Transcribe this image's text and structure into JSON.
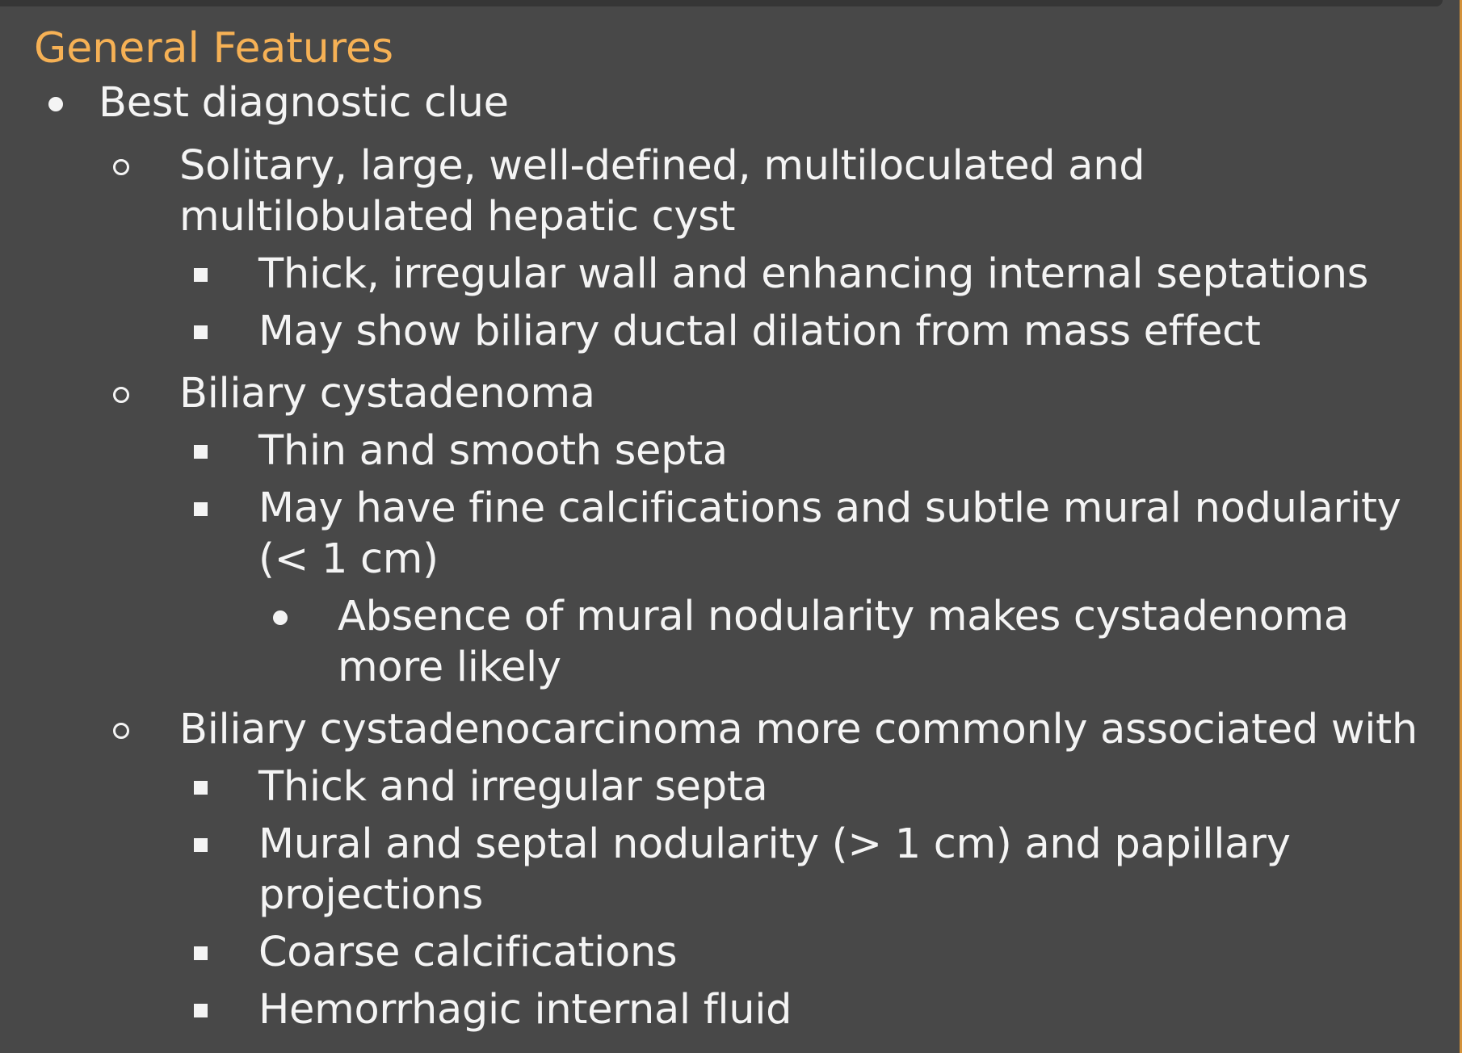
{
  "heading": "General Features",
  "items": [
    {
      "text": "Best diagnostic clue",
      "children": [
        {
          "text": "Solitary, large, well-defined, multiloculated and multilobulated hepatic cyst",
          "children": [
            {
              "text": "Thick, irregular wall and enhancing internal septations"
            },
            {
              "text": "May show biliary ductal dilation from mass effect"
            }
          ]
        },
        {
          "text": "Biliary cystadenoma",
          "children": [
            {
              "text": "Thin and smooth septa"
            },
            {
              "text": "May have fine calcifications and subtle mural nodularity (< 1 cm)",
              "children": [
                {
                  "text": "Absence of mural nodularity makes cystadenoma more likely"
                }
              ]
            }
          ]
        },
        {
          "text": "Biliary cystadenocarcinoma more commonly associated with",
          "children": [
            {
              "text": "Thick and irregular septa"
            },
            {
              "text": "Mural and septal nodularity (> 1 cm) and papillary projections"
            },
            {
              "text": "Coarse calcifications"
            },
            {
              "text": "Hemorrhagic internal fluid"
            }
          ]
        }
      ]
    }
  ],
  "colors": {
    "background": "#484848",
    "heading": "#f6b155",
    "text": "#f4f4f4"
  }
}
